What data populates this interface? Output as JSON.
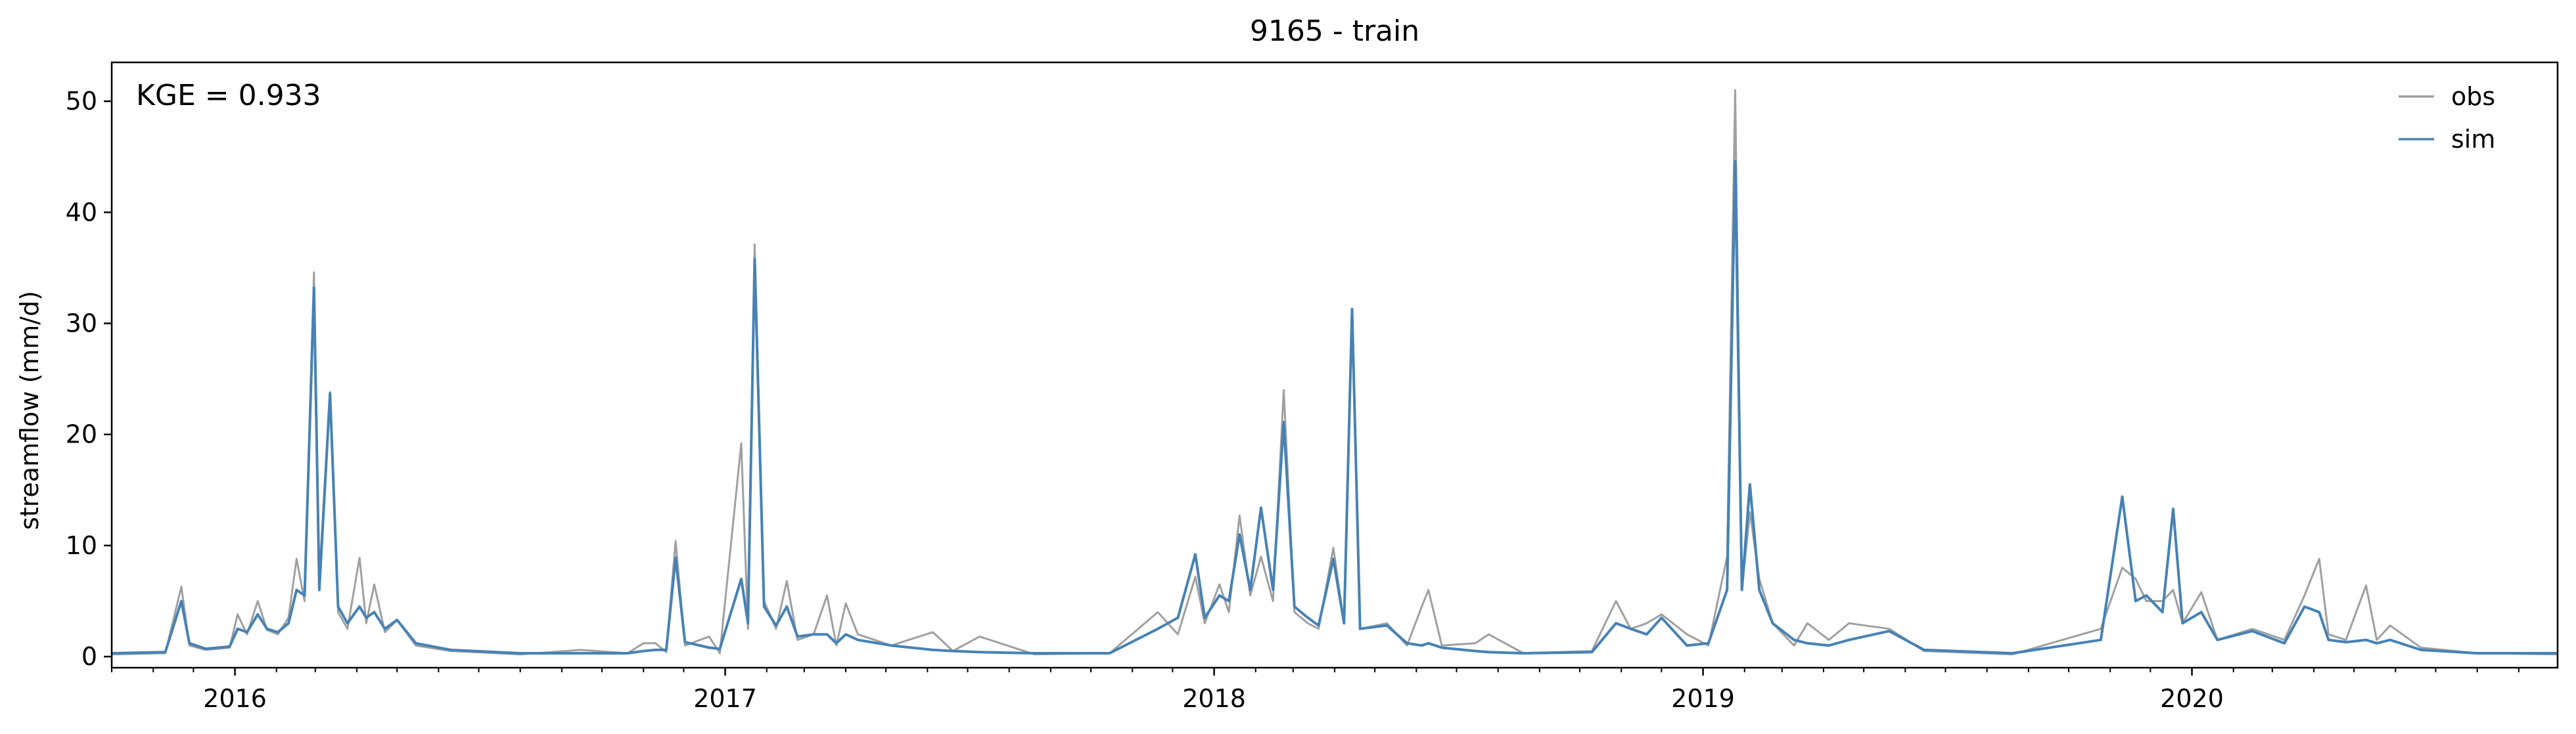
{
  "chart_data": {
    "type": "line",
    "title": "9165 - train",
    "xlabel": "",
    "ylabel": "streamflow (mm/d)",
    "annotation": "KGE = 0.933",
    "xlim": [
      "2015-10-01",
      "2020-09-30"
    ],
    "ylim": [
      -1,
      53.5
    ],
    "yticks": [
      0,
      10,
      20,
      30,
      40,
      50
    ],
    "xticks": [
      {
        "date": "2016-01-01",
        "label": "2016"
      },
      {
        "date": "2017-01-01",
        "label": "2017"
      },
      {
        "date": "2018-01-01",
        "label": "2018"
      },
      {
        "date": "2019-01-01",
        "label": "2019"
      },
      {
        "date": "2020-01-01",
        "label": "2020"
      }
    ],
    "grid": false,
    "legend_position": "top-right",
    "colors": {
      "obs": "#a0a0a0",
      "sim": "#4682b4"
    },
    "series": [
      {
        "name": "obs",
        "points": [
          [
            "2015-10-01",
            0.2
          ],
          [
            "2015-11-10",
            0.3
          ],
          [
            "2015-11-22",
            6.3
          ],
          [
            "2015-11-28",
            1.0
          ],
          [
            "2015-12-10",
            0.6
          ],
          [
            "2015-12-28",
            0.8
          ],
          [
            "2016-01-03",
            3.8
          ],
          [
            "2016-01-10",
            2.0
          ],
          [
            "2016-01-18",
            5.0
          ],
          [
            "2016-01-25",
            2.4
          ],
          [
            "2016-02-02",
            2.0
          ],
          [
            "2016-02-10",
            3.5
          ],
          [
            "2016-02-16",
            8.8
          ],
          [
            "2016-02-22",
            5.0
          ],
          [
            "2016-02-29",
            34.6
          ],
          [
            "2016-03-04",
            7.0
          ],
          [
            "2016-03-12",
            23.8
          ],
          [
            "2016-03-18",
            4.0
          ],
          [
            "2016-03-25",
            2.5
          ],
          [
            "2016-04-03",
            8.9
          ],
          [
            "2016-04-08",
            3.0
          ],
          [
            "2016-04-14",
            6.5
          ],
          [
            "2016-04-22",
            2.2
          ],
          [
            "2016-05-01",
            3.3
          ],
          [
            "2016-05-15",
            1.0
          ],
          [
            "2016-06-10",
            0.5
          ],
          [
            "2016-08-01",
            0.2
          ],
          [
            "2016-09-15",
            0.6
          ],
          [
            "2016-10-20",
            0.3
          ],
          [
            "2016-11-01",
            1.2
          ],
          [
            "2016-11-10",
            1.2
          ],
          [
            "2016-11-18",
            0.4
          ],
          [
            "2016-11-25",
            10.4
          ],
          [
            "2016-12-02",
            1.0
          ],
          [
            "2016-12-20",
            1.8
          ],
          [
            "2016-12-28",
            0.3
          ],
          [
            "2017-01-13",
            19.2
          ],
          [
            "2017-01-18",
            2.5
          ],
          [
            "2017-01-23",
            37.1
          ],
          [
            "2017-01-30",
            5.0
          ],
          [
            "2017-02-08",
            2.5
          ],
          [
            "2017-02-16",
            6.8
          ],
          [
            "2017-02-24",
            1.5
          ],
          [
            "2017-03-08",
            2.0
          ],
          [
            "2017-03-18",
            5.5
          ],
          [
            "2017-03-25",
            1.0
          ],
          [
            "2017-04-01",
            4.8
          ],
          [
            "2017-04-10",
            2.0
          ],
          [
            "2017-05-05",
            1.0
          ],
          [
            "2017-06-05",
            2.2
          ],
          [
            "2017-06-20",
            0.5
          ],
          [
            "2017-07-10",
            1.8
          ],
          [
            "2017-08-20",
            0.2
          ],
          [
            "2017-10-15",
            0.3
          ],
          [
            "2017-11-20",
            4.0
          ],
          [
            "2017-12-05",
            2.0
          ],
          [
            "2017-12-18",
            7.2
          ],
          [
            "2017-12-25",
            3.0
          ],
          [
            "2018-01-05",
            6.5
          ],
          [
            "2018-01-12",
            4.0
          ],
          [
            "2018-01-20",
            12.7
          ],
          [
            "2018-01-28",
            5.5
          ],
          [
            "2018-02-05",
            9.0
          ],
          [
            "2018-02-14",
            5.0
          ],
          [
            "2018-02-22",
            24.0
          ],
          [
            "2018-03-02",
            4.0
          ],
          [
            "2018-03-12",
            3.0
          ],
          [
            "2018-03-20",
            2.5
          ],
          [
            "2018-03-31",
            9.8
          ],
          [
            "2018-04-08",
            3.0
          ],
          [
            "2018-04-14",
            30.5
          ],
          [
            "2018-04-20",
            2.5
          ],
          [
            "2018-05-10",
            3.0
          ],
          [
            "2018-05-25",
            1.0
          ],
          [
            "2018-06-05",
            4.5
          ],
          [
            "2018-06-10",
            6.0
          ],
          [
            "2018-06-20",
            1.0
          ],
          [
            "2018-07-15",
            1.2
          ],
          [
            "2018-07-25",
            2.0
          ],
          [
            "2018-08-20",
            0.3
          ],
          [
            "2018-10-10",
            0.5
          ],
          [
            "2018-10-28",
            5.0
          ],
          [
            "2018-11-08",
            2.5
          ],
          [
            "2018-11-20",
            3.0
          ],
          [
            "2018-12-01",
            3.8
          ],
          [
            "2018-12-20",
            2.0
          ],
          [
            "2019-01-05",
            1.0
          ],
          [
            "2019-01-19",
            9.0
          ],
          [
            "2019-01-25",
            51.0
          ],
          [
            "2019-01-30",
            6.0
          ],
          [
            "2019-02-05",
            13.0
          ],
          [
            "2019-02-12",
            7.0
          ],
          [
            "2019-02-22",
            3.0
          ],
          [
            "2019-03-10",
            1.0
          ],
          [
            "2019-03-20",
            3.0
          ],
          [
            "2019-04-05",
            1.5
          ],
          [
            "2019-04-20",
            3.0
          ],
          [
            "2019-05-20",
            2.5
          ],
          [
            "2019-06-15",
            0.5
          ],
          [
            "2019-08-20",
            0.2
          ],
          [
            "2019-10-25",
            2.5
          ],
          [
            "2019-11-10",
            8.0
          ],
          [
            "2019-11-20",
            7.0
          ],
          [
            "2019-11-28",
            5.0
          ],
          [
            "2019-12-10",
            5.0
          ],
          [
            "2019-12-18",
            6.0
          ],
          [
            "2019-12-25",
            3.0
          ],
          [
            "2020-01-08",
            5.8
          ],
          [
            "2020-01-20",
            1.5
          ],
          [
            "2020-02-15",
            2.5
          ],
          [
            "2020-03-10",
            1.5
          ],
          [
            "2020-03-25",
            5.5
          ],
          [
            "2020-04-05",
            8.8
          ],
          [
            "2020-04-12",
            2.0
          ],
          [
            "2020-04-25",
            1.5
          ],
          [
            "2020-05-10",
            6.4
          ],
          [
            "2020-05-18",
            1.5
          ],
          [
            "2020-05-28",
            2.8
          ],
          [
            "2020-06-20",
            0.8
          ],
          [
            "2020-08-01",
            0.3
          ],
          [
            "2020-09-30",
            0.2
          ]
        ]
      },
      {
        "name": "sim",
        "points": [
          [
            "2015-10-01",
            0.3
          ],
          [
            "2015-11-10",
            0.4
          ],
          [
            "2015-11-22",
            5.0
          ],
          [
            "2015-11-28",
            1.2
          ],
          [
            "2015-12-10",
            0.7
          ],
          [
            "2015-12-28",
            0.9
          ],
          [
            "2016-01-03",
            2.5
          ],
          [
            "2016-01-10",
            2.2
          ],
          [
            "2016-01-18",
            3.8
          ],
          [
            "2016-01-25",
            2.5
          ],
          [
            "2016-02-02",
            2.2
          ],
          [
            "2016-02-10",
            3.0
          ],
          [
            "2016-02-16",
            6.0
          ],
          [
            "2016-02-22",
            5.5
          ],
          [
            "2016-02-29",
            33.2
          ],
          [
            "2016-03-04",
            6.0
          ],
          [
            "2016-03-12",
            23.7
          ],
          [
            "2016-03-18",
            4.5
          ],
          [
            "2016-03-25",
            3.0
          ],
          [
            "2016-04-03",
            4.5
          ],
          [
            "2016-04-08",
            3.5
          ],
          [
            "2016-04-14",
            4.0
          ],
          [
            "2016-04-22",
            2.5
          ],
          [
            "2016-05-01",
            3.3
          ],
          [
            "2016-05-15",
            1.2
          ],
          [
            "2016-06-10",
            0.6
          ],
          [
            "2016-08-01",
            0.3
          ],
          [
            "2016-09-15",
            0.3
          ],
          [
            "2016-10-20",
            0.3
          ],
          [
            "2016-11-01",
            0.5
          ],
          [
            "2016-11-10",
            0.6
          ],
          [
            "2016-11-18",
            0.6
          ],
          [
            "2016-11-25",
            8.9
          ],
          [
            "2016-12-02",
            1.3
          ],
          [
            "2016-12-20",
            0.8
          ],
          [
            "2016-12-28",
            0.7
          ],
          [
            "2017-01-13",
            7.0
          ],
          [
            "2017-01-18",
            3.0
          ],
          [
            "2017-01-23",
            35.8
          ],
          [
            "2017-01-30",
            4.5
          ],
          [
            "2017-02-08",
            2.8
          ],
          [
            "2017-02-16",
            4.5
          ],
          [
            "2017-02-24",
            1.8
          ],
          [
            "2017-03-08",
            2.0
          ],
          [
            "2017-03-18",
            2.0
          ],
          [
            "2017-03-25",
            1.2
          ],
          [
            "2017-04-01",
            2.0
          ],
          [
            "2017-04-10",
            1.5
          ],
          [
            "2017-05-05",
            1.0
          ],
          [
            "2017-06-05",
            0.6
          ],
          [
            "2017-06-20",
            0.5
          ],
          [
            "2017-07-10",
            0.4
          ],
          [
            "2017-08-20",
            0.3
          ],
          [
            "2017-10-15",
            0.3
          ],
          [
            "2017-11-20",
            2.5
          ],
          [
            "2017-12-05",
            3.5
          ],
          [
            "2017-12-18",
            9.2
          ],
          [
            "2017-12-25",
            3.5
          ],
          [
            "2018-01-05",
            5.5
          ],
          [
            "2018-01-12",
            5.0
          ],
          [
            "2018-01-20",
            11.0
          ],
          [
            "2018-01-28",
            6.0
          ],
          [
            "2018-02-05",
            13.4
          ],
          [
            "2018-02-14",
            6.0
          ],
          [
            "2018-02-22",
            21.1
          ],
          [
            "2018-03-02",
            4.5
          ],
          [
            "2018-03-12",
            3.5
          ],
          [
            "2018-03-20",
            2.8
          ],
          [
            "2018-03-31",
            8.8
          ],
          [
            "2018-04-08",
            3.0
          ],
          [
            "2018-04-14",
            31.3
          ],
          [
            "2018-04-20",
            2.5
          ],
          [
            "2018-05-10",
            2.8
          ],
          [
            "2018-05-25",
            1.2
          ],
          [
            "2018-06-05",
            1.0
          ],
          [
            "2018-06-10",
            1.2
          ],
          [
            "2018-06-20",
            0.8
          ],
          [
            "2018-07-15",
            0.5
          ],
          [
            "2018-07-25",
            0.4
          ],
          [
            "2018-08-20",
            0.3
          ],
          [
            "2018-10-10",
            0.4
          ],
          [
            "2018-10-28",
            3.0
          ],
          [
            "2018-11-08",
            2.5
          ],
          [
            "2018-11-20",
            2.0
          ],
          [
            "2018-12-01",
            3.5
          ],
          [
            "2018-12-20",
            1.0
          ],
          [
            "2019-01-05",
            1.2
          ],
          [
            "2019-01-19",
            6.0
          ],
          [
            "2019-01-25",
            44.6
          ],
          [
            "2019-01-30",
            6.0
          ],
          [
            "2019-02-05",
            15.5
          ],
          [
            "2019-02-12",
            6.0
          ],
          [
            "2019-02-22",
            3.0
          ],
          [
            "2019-03-10",
            1.5
          ],
          [
            "2019-03-20",
            1.2
          ],
          [
            "2019-04-05",
            1.0
          ],
          [
            "2019-04-20",
            1.5
          ],
          [
            "2019-05-20",
            2.3
          ],
          [
            "2019-06-15",
            0.6
          ],
          [
            "2019-08-20",
            0.3
          ],
          [
            "2019-10-25",
            1.5
          ],
          [
            "2019-11-10",
            14.4
          ],
          [
            "2019-11-20",
            5.0
          ],
          [
            "2019-11-28",
            5.5
          ],
          [
            "2019-12-10",
            4.0
          ],
          [
            "2019-12-18",
            13.3
          ],
          [
            "2019-12-25",
            3.0
          ],
          [
            "2020-01-08",
            4.0
          ],
          [
            "2020-01-20",
            1.5
          ],
          [
            "2020-02-15",
            2.3
          ],
          [
            "2020-03-10",
            1.2
          ],
          [
            "2020-03-25",
            4.5
          ],
          [
            "2020-04-05",
            4.0
          ],
          [
            "2020-04-12",
            1.5
          ],
          [
            "2020-04-25",
            1.3
          ],
          [
            "2020-05-10",
            1.5
          ],
          [
            "2020-05-18",
            1.2
          ],
          [
            "2020-05-28",
            1.5
          ],
          [
            "2020-06-20",
            0.6
          ],
          [
            "2020-08-01",
            0.3
          ],
          [
            "2020-09-30",
            0.3
          ]
        ]
      }
    ]
  }
}
